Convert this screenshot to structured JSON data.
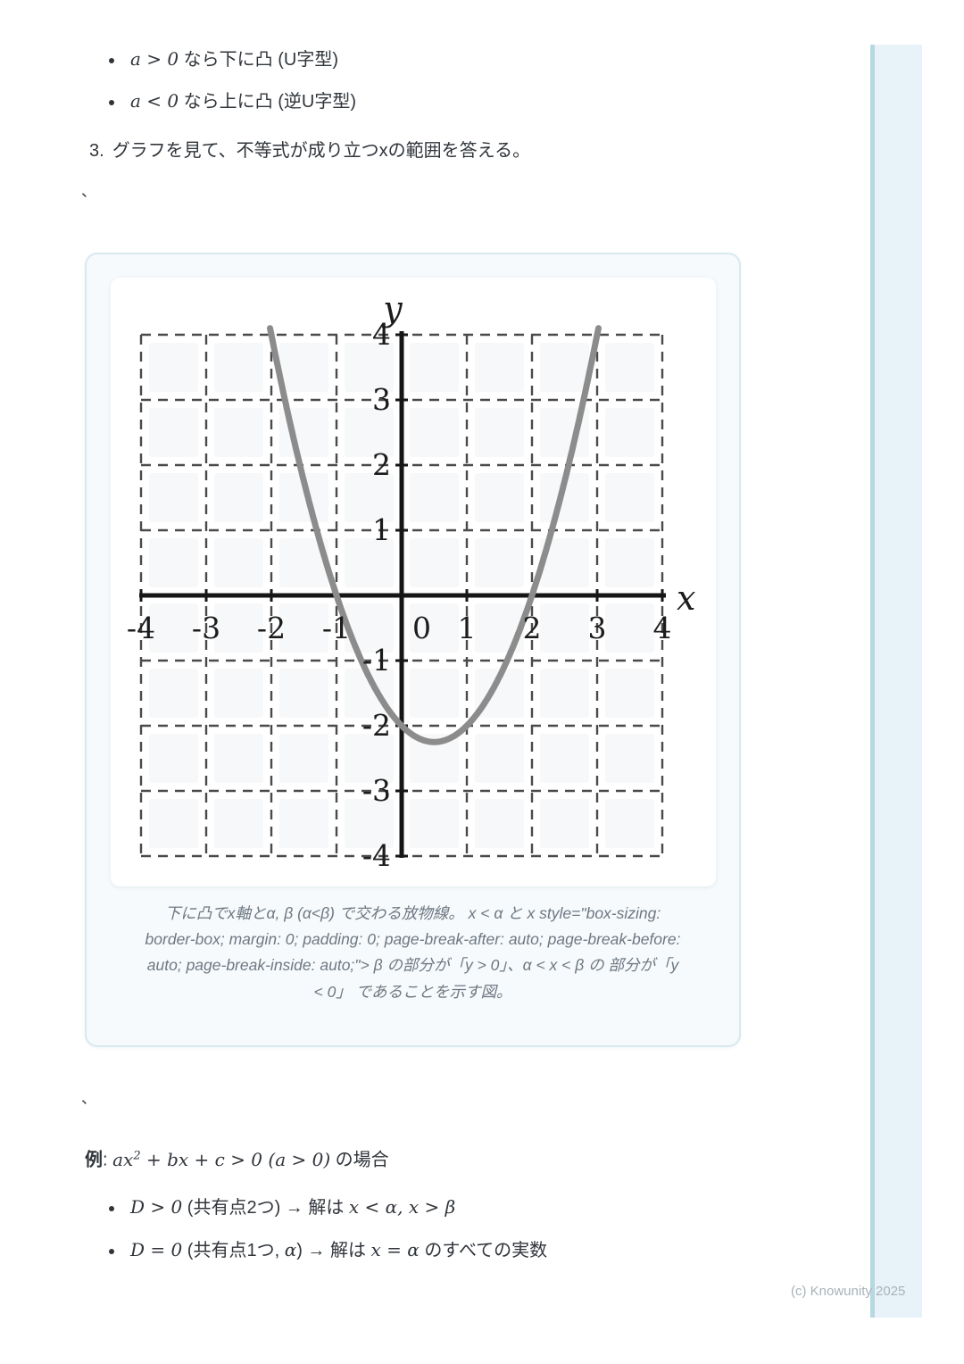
{
  "content": {
    "bullet_list_top": [
      {
        "math": "a > 0",
        "text": " なら下に凸 (U字型)"
      },
      {
        "math": "a < 0",
        "text": " なら上に凸 (逆U字型)"
      }
    ],
    "numbered_item": {
      "number": "3.",
      "text": "グラフを見て、不等式が成り立つxの範囲を答える。"
    },
    "stray_mark_1": "、",
    "stray_mark_2": "、",
    "figure": {
      "caption": "下に凸でx軸とα, β (α<β) で交わる放物線。 x < α と x style=\"box-sizing: border-box; margin: 0; padding: 0; page-break-after: auto; page-break-before: auto; page-break-inside: auto;\"> β の部分が「y > 0」、α < x < β の 部分が「y < 0」 であることを示す図。"
    },
    "example": {
      "label": "例",
      "colon": ": ",
      "formula_base": "ax",
      "formula_sup": "2",
      "formula_rest": " + bx + c > 0 (a > 0)",
      "suffix": " の場合"
    },
    "bullet_list_bottom": [
      {
        "m1": "D > 0",
        "j1": " (共有点2つ) → 解は ",
        "a": "",
        "j2": "",
        "m2": "x < α, x > β",
        "j3": ""
      },
      {
        "m1": "D = 0",
        "j1": " (共有点1つ, ",
        "a": "α",
        "j2": ") → 解は ",
        "m2": "x = α",
        "j3": " のすべての実数"
      }
    ]
  },
  "footer": {
    "copyright": "(c) Knowunity 2025"
  },
  "chart_data": {
    "type": "line",
    "title": "",
    "xlabel": "x",
    "ylabel": "y",
    "xlim": [
      -4,
      4
    ],
    "ylim": [
      -4,
      4
    ],
    "x_ticks": [
      -4,
      -3,
      -2,
      -1,
      0,
      1,
      2,
      3,
      4
    ],
    "y_ticks": [
      -4,
      -3,
      -2,
      -1,
      1,
      2,
      3,
      4
    ],
    "origin_label": "0",
    "grid": "dashed",
    "legend": "none",
    "curve": {
      "equation": "y = (x + 1)(x - 2) = x^2 - x - 2",
      "roots": [
        -1,
        2
      ],
      "vertex": [
        0.5,
        -2.25
      ],
      "direction": "opens-up",
      "color": "#8c8c8c"
    },
    "axis_color": "#161616",
    "grid_color": "#4a4a4a"
  }
}
